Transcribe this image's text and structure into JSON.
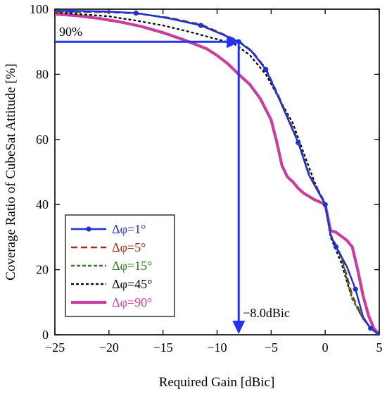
{
  "chart_data": {
    "type": "line",
    "xlabel": "Required Gain [dBic]",
    "ylabel": "Coverage Ratio of CubeSat Attitude [%]",
    "xlim": [
      -25,
      5
    ],
    "ylim": [
      0,
      100
    ],
    "xticks": [
      -25,
      -20,
      -15,
      -10,
      -5,
      0,
      5
    ],
    "yticks": [
      0,
      20,
      40,
      60,
      80,
      100
    ],
    "grid": false,
    "legend_position": "bottom-left",
    "series": [
      {
        "name": "Δφ=1°",
        "color": "#1f2fd6",
        "style": "solid-circle-markers",
        "x": [
          -25,
          -23.5,
          -20.5,
          -17.5,
          -14.5,
          -11.5,
          -9.5,
          -8,
          -6.8,
          -5.5,
          -4.2,
          -2.5,
          -1.5,
          0,
          0.5,
          1,
          2,
          2.8,
          3.5,
          4.2,
          5
        ],
        "y": [
          99.5,
          99.5,
          99.3,
          98.8,
          97.2,
          95,
          92.2,
          90,
          87,
          81.5,
          72,
          59,
          49,
          40,
          30.5,
          27,
          21,
          14,
          5.5,
          2,
          0
        ]
      },
      {
        "name": "Δφ=5°",
        "color": "#a52a1a",
        "style": "dashed",
        "x": [
          -25,
          -20,
          -17.5,
          -14.5,
          -11.5,
          -9.5,
          -8,
          -6.8,
          -5.5,
          -4.2,
          -2.5,
          -1.5,
          0,
          0.5,
          1.5,
          2.5,
          3.5,
          4.2,
          5
        ],
        "y": [
          99.2,
          99.1,
          98.7,
          97.4,
          95.3,
          92.4,
          90.2,
          87.2,
          81.8,
          72.5,
          59.5,
          49.5,
          40.5,
          30.8,
          24,
          12,
          5,
          2,
          0
        ]
      },
      {
        "name": "Δφ=15°",
        "color": "#2f7a1f",
        "style": "dash-square-markers",
        "x": [
          -25,
          -20,
          -17.5,
          -14.5,
          -11.5,
          -9.5,
          -8,
          -6.8,
          -5.5,
          -4.2,
          -2.5,
          -1.5,
          0,
          0.5,
          1.5,
          2.5,
          3.5,
          4.2,
          5
        ],
        "y": [
          99.3,
          99.2,
          98.8,
          97.3,
          95.1,
          92.3,
          90.1,
          87.1,
          81.6,
          72.2,
          59.2,
          49.2,
          40.2,
          30.6,
          23.5,
          11,
          5,
          2,
          0
        ]
      },
      {
        "name": "Δφ=45°",
        "color": "#000000",
        "style": "dotted",
        "x": [
          -25,
          -22,
          -20,
          -17.5,
          -15,
          -12.5,
          -10.5,
          -8.5,
          -7,
          -5.5,
          -4,
          -3,
          -2,
          -1,
          0,
          0.5,
          1.5,
          2.5,
          3.5,
          4.2,
          5
        ],
        "y": [
          99,
          98.3,
          97.8,
          96.5,
          95,
          93,
          91.2,
          89.5,
          86,
          80,
          71,
          65,
          56,
          47,
          40,
          30,
          22,
          11,
          5,
          2,
          0
        ]
      },
      {
        "name": "Δφ=90°",
        "color": "#c8409e",
        "style": "thick-solid",
        "x": [
          -25,
          -23,
          -21,
          -19,
          -17,
          -15,
          -13,
          -11,
          -10,
          -9,
          -8,
          -7,
          -6,
          -5,
          -4.5,
          -4,
          -3.5,
          -3,
          -2.5,
          -2,
          -1.5,
          -1,
          -0.5,
          0,
          0.5,
          1,
          2,
          2.5,
          3,
          3.5,
          4,
          4.5,
          5
        ],
        "y": [
          98.5,
          98,
          97.2,
          96.1,
          94.7,
          92.8,
          90.5,
          87.9,
          85.8,
          83.2,
          80,
          77,
          72.5,
          66,
          59.5,
          52,
          48.5,
          47,
          45,
          43.5,
          42.5,
          41.5,
          40.8,
          40,
          32,
          31.5,
          29,
          27,
          20,
          12,
          6,
          2,
          0
        ]
      }
    ],
    "annotations": {
      "threshold_label": "90%",
      "threshold_y": 90,
      "result_label": "−8.0dBic",
      "result_x": -8
    },
    "arrow_color": "#2233ee"
  }
}
